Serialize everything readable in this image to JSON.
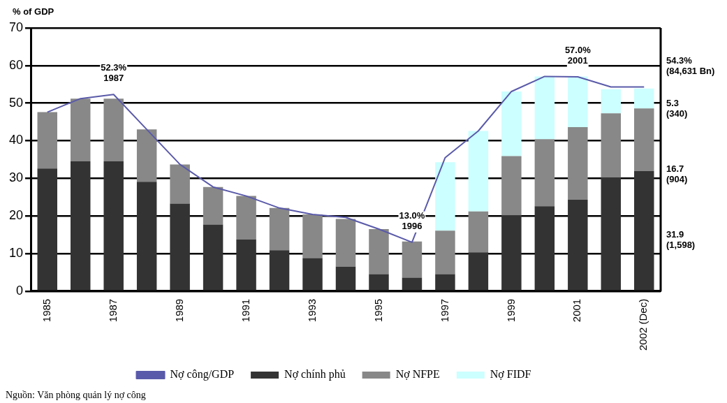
{
  "chart_data": {
    "type": "bar",
    "stacked": true,
    "ylabel": "% of GDP",
    "categories": [
      "1985",
      null,
      "1987",
      null,
      "1989",
      null,
      "1991",
      null,
      "1993",
      null,
      "1995",
      null,
      "1997",
      null,
      "1999",
      null,
      "2001",
      null,
      "2002 (Dec)"
    ],
    "series": [
      {
        "name": "Nợ chính phủ",
        "color": "#333333",
        "values": [
          32.6,
          34.5,
          34.5,
          29.1,
          23.3,
          17.7,
          13.7,
          10.9,
          8.8,
          6.5,
          4.5,
          3.6,
          4.5,
          10.3,
          20.1,
          22.6,
          24.3,
          30.3,
          31.9
        ]
      },
      {
        "name": "Nợ NFPE",
        "color": "#888888",
        "values": [
          15.0,
          16.7,
          16.7,
          13.9,
          10.4,
          10.0,
          11.6,
          11.2,
          11.6,
          12.7,
          12.0,
          9.6,
          11.6,
          10.9,
          15.8,
          17.8,
          19.3,
          17.0,
          16.7
        ]
      },
      {
        "name": "Nợ FIDF",
        "color": "#ccffff",
        "values": [
          null,
          null,
          null,
          null,
          null,
          null,
          null,
          null,
          null,
          null,
          null,
          null,
          18.2,
          21.4,
          17.2,
          16.7,
          13.5,
          6.4,
          5.3
        ]
      },
      {
        "name": "Nợ công/GDP",
        "type": "line",
        "color": "#5a5aaa",
        "values": [
          47.6,
          51.2,
          52.3,
          43.0,
          33.7,
          27.7,
          25.3,
          22.1,
          20.4,
          19.6,
          16.5,
          13.0,
          35.5,
          42.6,
          53.1,
          57.1,
          57.0,
          54.3,
          54.3
        ]
      }
    ],
    "ylim": [
      0,
      70
    ],
    "yticks": [
      0,
      10,
      20,
      30,
      40,
      50,
      60,
      70
    ],
    "grid": "y",
    "legend": "bottom",
    "marker": "none",
    "annotations": [
      {
        "text": "52.3%\n1987",
        "x": "1987",
        "y": 52.3
      },
      {
        "text": "13.0%\n1996",
        "y": 13.0
      },
      {
        "text": "57.0%\n2001",
        "x": "2001",
        "y": 57.0
      },
      {
        "text": "54.3%\n(84,631 Bn)",
        "x": "2002 (Dec)",
        "y": 54.3
      },
      "5.3\n(340)",
      "16.7\n(904)",
      "31.9\n(1,598)",
      "Nguồn: Văn phòng quản lý nợ công"
    ]
  }
}
